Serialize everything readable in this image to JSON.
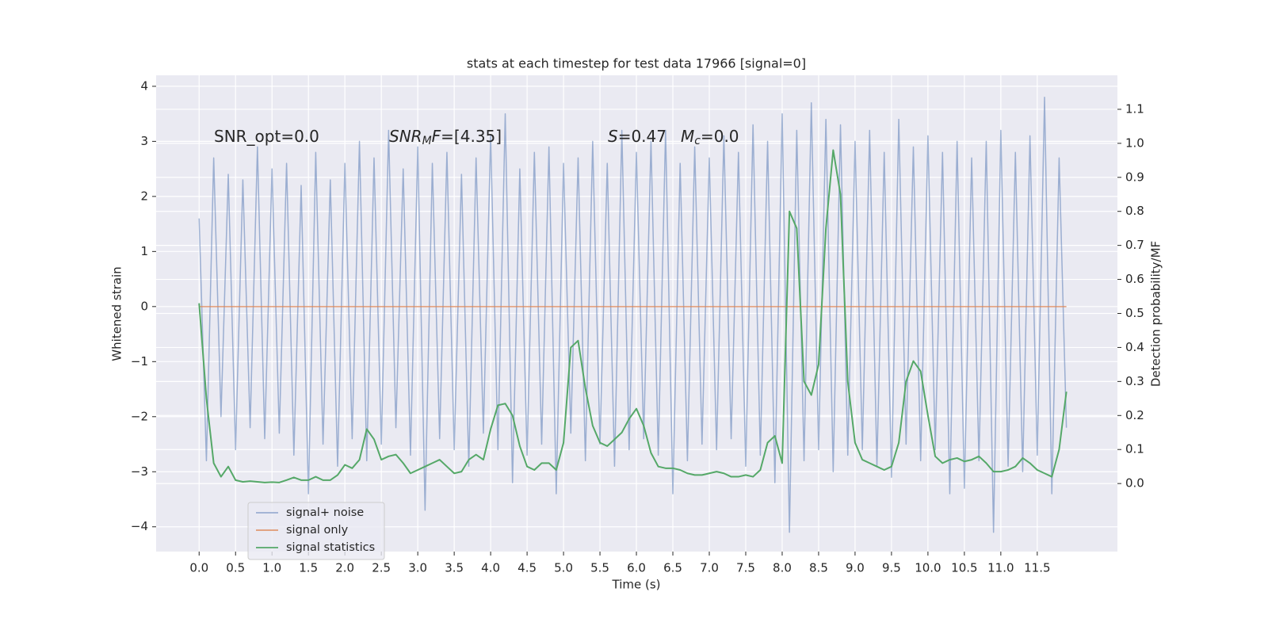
{
  "chart_data": {
    "type": "line",
    "title": "stats at each timestep for test data 17966 [signal=0]",
    "x_label": "Time (s)",
    "y_label": "Whitened strain",
    "y2_label": "Detection probability/MF",
    "grid": true,
    "legend": "lower left",
    "xlim": [
      -0.59,
      12.6
    ],
    "ylim": [
      -4.45,
      4.2
    ],
    "y2lim": [
      -0.2,
      1.2
    ],
    "xticks": [
      {
        "value": 0,
        "label": "0.0"
      },
      0.5,
      {
        "value": 1,
        "label": "1.0"
      },
      1.5,
      {
        "value": 2,
        "label": "2.0"
      },
      2.5,
      {
        "value": 3,
        "label": "3.0"
      },
      3.5,
      {
        "value": 4,
        "label": "4.0"
      },
      4.5,
      {
        "value": 5,
        "label": "5.0"
      },
      5.5,
      {
        "value": 6,
        "label": "6.0"
      },
      6.5,
      {
        "value": 7,
        "label": "7.0"
      },
      7.5,
      {
        "value": 8,
        "label": "8.0"
      },
      8.5,
      {
        "value": 9,
        "label": "9.0"
      },
      9.5,
      {
        "value": 10,
        "label": "10.0"
      },
      10.5,
      {
        "value": 11,
        "label": "11.0"
      },
      11.5
    ],
    "yticks": [
      {
        "value": -4,
        "label": "−4"
      },
      {
        "value": -3,
        "label": "−3"
      },
      {
        "value": -2,
        "label": "−2"
      },
      {
        "value": -1,
        "label": "−1"
      },
      0,
      1,
      2,
      3,
      4
    ],
    "y2ticks": [
      {
        "value": 0,
        "label": "0.0"
      },
      0.1,
      0.2,
      0.3,
      0.4,
      0.5,
      0.6,
      0.7,
      0.8,
      0.9,
      {
        "value": 1,
        "label": "1.0"
      },
      1.1
    ],
    "annotations": [
      {
        "parts": [
          {
            "text": "SNR_opt=0.0"
          }
        ]
      },
      {
        "parts": [
          {
            "text": "SNR",
            "italic": true
          },
          {
            "text": "M",
            "italic": true,
            "sub": true
          },
          {
            "text": "F",
            "italic": true
          },
          {
            "text": "=[4.35]"
          }
        ]
      },
      {
        "parts": [
          {
            "text": "S",
            "italic": true
          },
          {
            "text": "=0.47"
          }
        ]
      },
      {
        "parts": [
          {
            "text": "M",
            "italic": true
          },
          {
            "text": "c",
            "italic": true,
            "sub": true
          },
          {
            "text": "=0.0"
          }
        ]
      }
    ],
    "x": [
      0.0,
      0.1,
      0.2,
      0.3,
      0.4,
      0.5,
      0.6,
      0.7,
      0.8,
      0.9,
      1.0,
      1.1,
      1.2,
      1.3,
      1.4,
      1.5,
      1.6,
      1.7,
      1.8,
      1.9,
      2.0,
      2.1,
      2.2,
      2.3,
      2.4,
      2.5,
      2.6,
      2.7,
      2.8,
      2.9,
      3.0,
      3.1,
      3.2,
      3.3,
      3.4,
      3.5,
      3.6,
      3.7,
      3.8,
      3.9,
      4.0,
      4.1,
      4.2,
      4.3,
      4.4,
      4.5,
      4.6,
      4.7,
      4.8,
      4.9,
      5.0,
      5.1,
      5.2,
      5.3,
      5.4,
      5.5,
      5.6,
      5.7,
      5.8,
      5.9,
      6.0,
      6.1,
      6.2,
      6.3,
      6.4,
      6.5,
      6.6,
      6.7,
      6.8,
      6.9,
      7.0,
      7.1,
      7.2,
      7.3,
      7.4,
      7.5,
      7.6,
      7.7,
      7.8,
      7.9,
      8.0,
      8.1,
      8.2,
      8.3,
      8.4,
      8.5,
      8.6,
      8.7,
      8.8,
      8.9,
      9.0,
      9.1,
      9.2,
      9.3,
      9.4,
      9.5,
      9.6,
      9.7,
      9.8,
      9.9,
      10.0,
      10.1,
      10.2,
      10.3,
      10.4,
      10.5,
      10.6,
      10.7,
      10.8,
      10.9,
      11.0,
      11.1,
      11.2,
      11.3,
      11.4,
      11.5,
      11.6,
      11.7,
      11.8,
      11.9
    ],
    "series": [
      {
        "name": "signal+ noise",
        "color": "#4c72b0",
        "opacity": 0.5,
        "axis": "y",
        "values": [
          1.6,
          -2.8,
          2.7,
          -2.0,
          2.4,
          -2.6,
          2.3,
          -2.2,
          2.9,
          -2.4,
          2.5,
          -2.3,
          2.6,
          -2.7,
          2.2,
          -3.4,
          2.8,
          -2.5,
          2.3,
          -2.9,
          2.6,
          -2.4,
          3.0,
          -2.8,
          2.7,
          -2.5,
          3.2,
          -2.2,
          2.5,
          -2.7,
          2.9,
          -3.7,
          2.6,
          -2.4,
          2.8,
          -2.6,
          2.4,
          -2.9,
          2.7,
          -2.3,
          3.1,
          -2.6,
          3.5,
          -3.2,
          2.5,
          -2.7,
          2.8,
          -2.5,
          2.9,
          -3.4,
          2.6,
          -2.3,
          2.7,
          -2.8,
          3.0,
          -2.5,
          2.6,
          -2.9,
          3.2,
          -2.6,
          2.8,
          -2.4,
          3.0,
          -2.7,
          3.2,
          -3.4,
          2.6,
          -2.8,
          2.9,
          -2.5,
          2.7,
          -2.6,
          3.1,
          -2.4,
          2.8,
          -2.9,
          3.3,
          -2.7,
          3.0,
          -3.2,
          3.5,
          -4.1,
          3.2,
          -2.8,
          3.7,
          -2.6,
          3.4,
          -3.0,
          3.3,
          -2.7,
          3.0,
          -2.6,
          3.2,
          -2.9,
          2.8,
          -3.1,
          3.4,
          -2.5,
          2.9,
          -2.8,
          3.1,
          -2.6,
          2.8,
          -3.4,
          3.0,
          -3.3,
          2.7,
          -2.8,
          3.0,
          -4.1,
          3.2,
          -2.9,
          2.8,
          -3.0,
          3.1,
          -2.7,
          3.8,
          -3.4,
          2.7,
          -2.2
        ]
      },
      {
        "name": "signal only",
        "color": "#dd8452",
        "opacity": 0.8,
        "axis": "y",
        "values": [
          0,
          0,
          0,
          0,
          0,
          0,
          0,
          0,
          0,
          0,
          0,
          0,
          0,
          0,
          0,
          0,
          0,
          0,
          0,
          0,
          0,
          0,
          0,
          0,
          0,
          0,
          0,
          0,
          0,
          0,
          0,
          0,
          0,
          0,
          0,
          0,
          0,
          0,
          0,
          0,
          0,
          0,
          0,
          0,
          0,
          0,
          0,
          0,
          0,
          0,
          0,
          0,
          0,
          0,
          0,
          0,
          0,
          0,
          0,
          0,
          0,
          0,
          0,
          0,
          0,
          0,
          0,
          0,
          0,
          0,
          0,
          0,
          0,
          0,
          0,
          0,
          0,
          0,
          0,
          0,
          0,
          0,
          0,
          0,
          0,
          0,
          0,
          0,
          0,
          0,
          0,
          0,
          0,
          0,
          0,
          0,
          0,
          0,
          0,
          0,
          0,
          0,
          0,
          0,
          0,
          0,
          0,
          0,
          0,
          0,
          0,
          0,
          0,
          0,
          0,
          0,
          0,
          0,
          0,
          0
        ]
      },
      {
        "name": "signal statistics",
        "color": "#55a868",
        "opacity": 1,
        "axis": "y2",
        "values": [
          0.53,
          0.25,
          0.06,
          0.02,
          0.05,
          0.01,
          0.005,
          0.007,
          0.005,
          0.003,
          0.004,
          0.003,
          0.01,
          0.018,
          0.01,
          0.01,
          0.02,
          0.01,
          0.01,
          0.025,
          0.055,
          0.045,
          0.07,
          0.16,
          0.13,
          0.07,
          0.08,
          0.085,
          0.06,
          0.03,
          0.04,
          0.05,
          0.06,
          0.07,
          0.05,
          0.03,
          0.035,
          0.07,
          0.085,
          0.07,
          0.16,
          0.23,
          0.235,
          0.2,
          0.11,
          0.05,
          0.04,
          0.06,
          0.06,
          0.04,
          0.12,
          0.4,
          0.42,
          0.28,
          0.17,
          0.12,
          0.11,
          0.13,
          0.15,
          0.19,
          0.22,
          0.17,
          0.09,
          0.05,
          0.045,
          0.045,
          0.04,
          0.03,
          0.025,
          0.025,
          0.03,
          0.035,
          0.03,
          0.02,
          0.02,
          0.025,
          0.02,
          0.04,
          0.12,
          0.14,
          0.06,
          0.8,
          0.75,
          0.3,
          0.26,
          0.35,
          0.75,
          0.98,
          0.85,
          0.3,
          0.12,
          0.07,
          0.06,
          0.05,
          0.04,
          0.05,
          0.12,
          0.3,
          0.36,
          0.33,
          0.2,
          0.08,
          0.06,
          0.07,
          0.075,
          0.065,
          0.07,
          0.08,
          0.06,
          0.035,
          0.035,
          0.04,
          0.05,
          0.075,
          0.06,
          0.04,
          0.03,
          0.02,
          0.1,
          0.27
        ]
      }
    ]
  }
}
